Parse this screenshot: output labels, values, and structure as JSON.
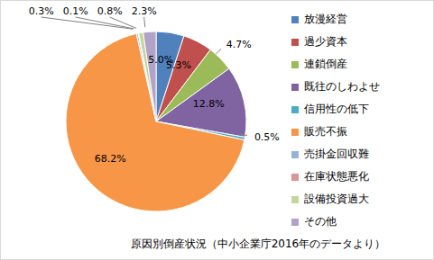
{
  "chart_data": {
    "type": "pie",
    "title": "原因別倒産状況（中小企業庁2016年のデータより）",
    "categories": [
      "放漫経営",
      "過少資本",
      "連鎖倒産",
      "既往のしわよせ",
      "信用性の低下",
      "販売不振",
      "売掛金回収難",
      "在庫状態悪化",
      "設備投資過大",
      "その他"
    ],
    "values": [
      5.0,
      5.3,
      4.7,
      12.8,
      0.5,
      68.2,
      0.3,
      0.1,
      0.8,
      2.3
    ],
    "value_labels": [
      "5.0%",
      "5.3%",
      "4.7%",
      "12.8%",
      "0.5%",
      "68.2%",
      "0.3%",
      "0.1%",
      "0.8%",
      "2.3%"
    ],
    "colors": [
      "#4F81BD",
      "#C0504D",
      "#9BBB59",
      "#8064A2",
      "#4BACC6",
      "#F79646",
      "#95B3D7",
      "#D99694",
      "#C3D69B",
      "#B3A2C7"
    ],
    "data_labels": true
  }
}
